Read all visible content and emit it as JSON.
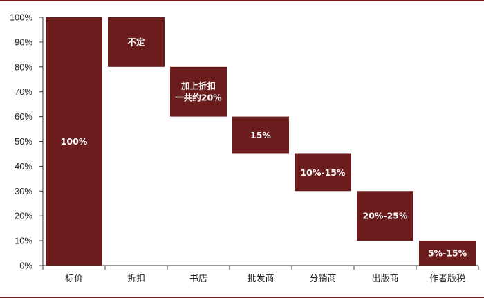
{
  "chart_data": {
    "type": "bar",
    "subtype": "waterfall",
    "categories": [
      "标价",
      "折扣",
      "书店",
      "批发商",
      "分销商",
      "出版商",
      "作者版税"
    ],
    "ranges": [
      [
        0,
        100
      ],
      [
        80,
        100
      ],
      [
        60,
        80
      ],
      [
        45,
        60
      ],
      [
        30,
        45
      ],
      [
        10,
        30
      ],
      [
        0,
        10
      ]
    ],
    "bar_labels": [
      [
        "100%"
      ],
      [
        "不定"
      ],
      [
        "加上折扣",
        "一共约20%"
      ],
      [
        "15%"
      ],
      [
        "10%-15%"
      ],
      [
        "20%-25%"
      ],
      [
        "5%-15%"
      ]
    ],
    "yticks": [
      "0%",
      "10%",
      "20%",
      "30%",
      "40%",
      "50%",
      "60%",
      "70%",
      "80%",
      "90%",
      "100%"
    ],
    "ylim": [
      0,
      100
    ],
    "grid": false,
    "legend": "none",
    "bar_color": "#6b1d1d",
    "frame_color": "#6b1d1d"
  }
}
